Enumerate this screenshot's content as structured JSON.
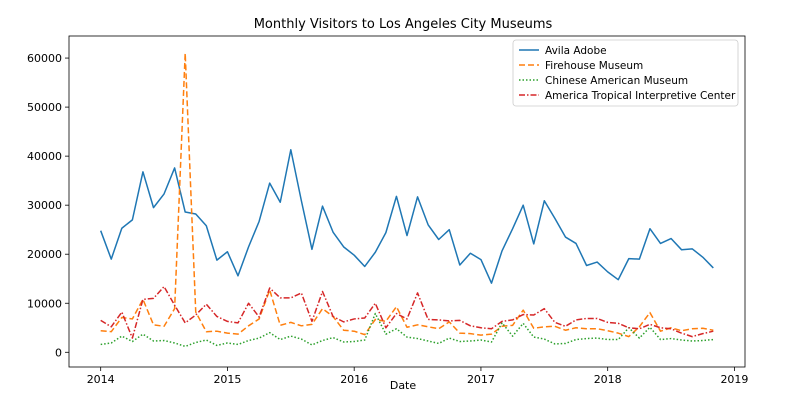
{
  "chart_data": {
    "type": "line",
    "title": "Monthly Visitors to Los Angeles City Museums",
    "xlabel": "Date",
    "ylabel": "",
    "x_tick_labels": [
      "2014",
      "2015",
      "2016",
      "2017",
      "2018",
      "2019"
    ],
    "x_tick_years": [
      2014,
      2015,
      2016,
      2017,
      2018,
      2019
    ],
    "xlim": [
      "2013-10",
      "2019-02"
    ],
    "ylim": [
      -3000,
      64500
    ],
    "y_ticks": [
      0,
      10000,
      20000,
      30000,
      40000,
      50000,
      60000
    ],
    "y_tick_labels": [
      "0",
      "10000",
      "20000",
      "30000",
      "40000",
      "50000",
      "60000"
    ],
    "x": [
      "2014-01",
      "2014-02",
      "2014-03",
      "2014-04",
      "2014-05",
      "2014-06",
      "2014-07",
      "2014-08",
      "2014-09",
      "2014-10",
      "2014-11",
      "2014-12",
      "2015-01",
      "2015-02",
      "2015-03",
      "2015-04",
      "2015-05",
      "2015-06",
      "2015-07",
      "2015-08",
      "2015-09",
      "2015-10",
      "2015-11",
      "2015-12",
      "2016-01",
      "2016-02",
      "2016-03",
      "2016-04",
      "2016-05",
      "2016-06",
      "2016-07",
      "2016-08",
      "2016-09",
      "2016-10",
      "2016-11",
      "2016-12",
      "2017-01",
      "2017-02",
      "2017-03",
      "2017-04",
      "2017-05",
      "2017-06",
      "2017-07",
      "2017-08",
      "2017-09",
      "2017-10",
      "2017-11",
      "2017-12",
      "2018-01",
      "2018-02",
      "2018-03",
      "2018-04",
      "2018-05",
      "2018-06",
      "2018-07",
      "2018-08",
      "2018-09",
      "2018-10",
      "2018-11"
    ],
    "legend_position": "top-right",
    "grid": false,
    "series": [
      {
        "name": "Avila Adobe",
        "color": "#1f77b4",
        "dash": "solid",
        "values": [
          24800,
          19000,
          25300,
          27000,
          36800,
          29500,
          32300,
          37600,
          28600,
          28200,
          25800,
          18800,
          20500,
          15600,
          21500,
          26700,
          34500,
          30600,
          41300,
          30900,
          21000,
          29800,
          24500,
          21500,
          19800,
          17500,
          20400,
          24400,
          31800,
          23800,
          31700,
          26000,
          23000,
          25000,
          17800,
          20200,
          18900,
          14100,
          20700,
          25200,
          30000,
          22100,
          30900,
          27300,
          23500,
          22200,
          17700,
          18400,
          16400,
          14800,
          19100,
          19000,
          25200,
          22200,
          23200,
          20900,
          21100,
          19400,
          17200
        ]
      },
      {
        "name": "Firehouse Museum",
        "color": "#ff7f0e",
        "dash": "dashed",
        "values": [
          4400,
          4200,
          7100,
          6800,
          10800,
          5600,
          5300,
          8900,
          61000,
          8200,
          4200,
          4300,
          3900,
          3700,
          5400,
          6800,
          12700,
          5500,
          6100,
          5400,
          5700,
          8900,
          7300,
          4500,
          4300,
          3600,
          6700,
          6300,
          9300,
          5100,
          5600,
          5200,
          4800,
          6200,
          3900,
          3800,
          3500,
          3700,
          5300,
          5500,
          8600,
          4900,
          5200,
          5300,
          4500,
          5000,
          4800,
          4800,
          4400,
          3900,
          3200,
          5200,
          8100,
          4300,
          5000,
          4400,
          4800,
          4900,
          4500
        ]
      },
      {
        "name": "Chinese American Museum",
        "color": "#2ca02c",
        "dash": "dotted",
        "values": [
          1600,
          1900,
          3300,
          2200,
          3700,
          2300,
          2400,
          1900,
          1200,
          2000,
          2500,
          1400,
          1900,
          1600,
          2400,
          2900,
          4000,
          2600,
          3300,
          2700,
          1500,
          2400,
          3000,
          2100,
          2200,
          2500,
          7900,
          3700,
          4800,
          3100,
          2800,
          2300,
          1800,
          2900,
          2200,
          2300,
          2500,
          2100,
          6000,
          3300,
          5900,
          3100,
          2700,
          1700,
          1800,
          2600,
          2800,
          2900,
          2600,
          2600,
          5000,
          2900,
          5100,
          2600,
          2800,
          2500,
          2300,
          2400,
          2600
        ]
      },
      {
        "name": "America Tropical Interpretive Center",
        "color": "#d62728",
        "dash": "dashdot",
        "values": [
          6500,
          5200,
          8200,
          2900,
          10800,
          11000,
          13400,
          9600,
          6000,
          7600,
          9800,
          7300,
          6300,
          6000,
          10000,
          7200,
          13100,
          11100,
          11100,
          12100,
          6300,
          12400,
          7300,
          6200,
          6800,
          7000,
          10000,
          5000,
          7900,
          6800,
          12100,
          6700,
          6600,
          6400,
          6500,
          5400,
          5000,
          4800,
          6300,
          6600,
          7700,
          7600,
          8900,
          6100,
          5300,
          6600,
          6900,
          6900,
          6100,
          5900,
          5000,
          4800,
          5700,
          5000,
          4800,
          3900,
          3200,
          3800,
          4300
        ]
      }
    ]
  }
}
